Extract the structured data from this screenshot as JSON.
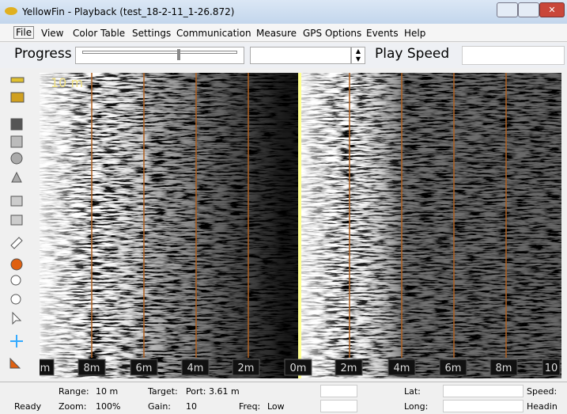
{
  "window": {
    "title": "YellowFin - Playback (test_18-2-11_1-26.872)"
  },
  "menu": [
    "File",
    "View",
    "Color Table",
    "Settings",
    "Communication",
    "Measure",
    "GPS Options",
    "Events",
    "Help"
  ],
  "toolbar": {
    "progress": "Progress",
    "play_speed": "Play Speed"
  },
  "sonar": {
    "range_label": "10 m",
    "scale": [
      "m",
      "8m",
      "6m",
      "4m",
      "2m",
      "0m",
      "2m",
      "4m",
      "6m",
      "8m",
      "10"
    ]
  },
  "status": {
    "range_label": "Range:",
    "range": "10 m",
    "target_label": "Target:",
    "target": "Port: 3.61 m",
    "lat_label": "Lat:",
    "speed_label": "Speed:",
    "ready": "Ready",
    "zoom_label": "Zoom:",
    "zoom": "100%",
    "gain_label": "Gain:",
    "gain": "10",
    "freq_label": "Freq:",
    "freq": "Low",
    "long_label": "Long:",
    "heading_label": "Headin"
  }
}
